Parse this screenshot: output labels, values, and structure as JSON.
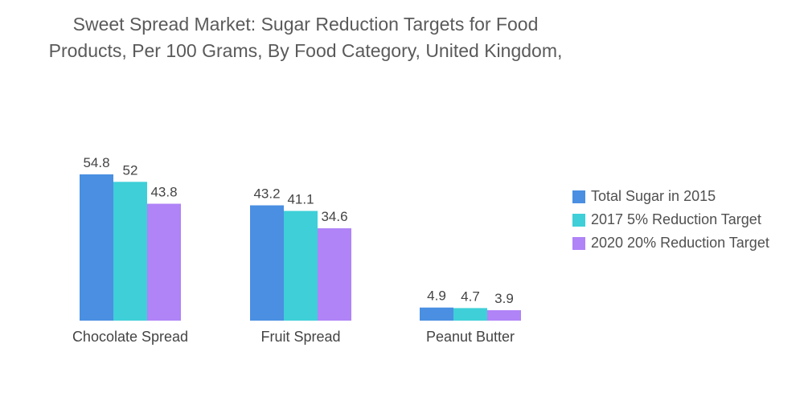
{
  "chart_data": {
    "type": "bar",
    "title": "Sweet Spread Market: Sugar Reduction Targets for Food Products, Per 100 Grams, By Food Category, United Kingdom,",
    "categories": [
      "Chocolate Spread",
      "Fruit Spread",
      "Peanut Butter"
    ],
    "series": [
      {
        "name": "Total Sugar in 2015",
        "color": "#4a8fe2",
        "values": [
          54.8,
          43.2,
          4.9
        ],
        "labels": [
          "54.8",
          "43.2",
          "4.9"
        ]
      },
      {
        "name": "2017 5% Reduction Target",
        "color": "#3ecfd8",
        "values": [
          52,
          41.1,
          4.7
        ],
        "labels": [
          "52",
          "41.1",
          "4.7"
        ]
      },
      {
        "name": "2020 20% Reduction Target",
        "color": "#b083f7",
        "values": [
          43.8,
          34.6,
          3.9
        ],
        "labels": [
          "43.8",
          "34.6",
          "3.9"
        ]
      }
    ],
    "ylim": [
      0,
      54.8
    ],
    "xlabel": "",
    "ylabel": "",
    "grid": false,
    "legend_position": "right"
  }
}
